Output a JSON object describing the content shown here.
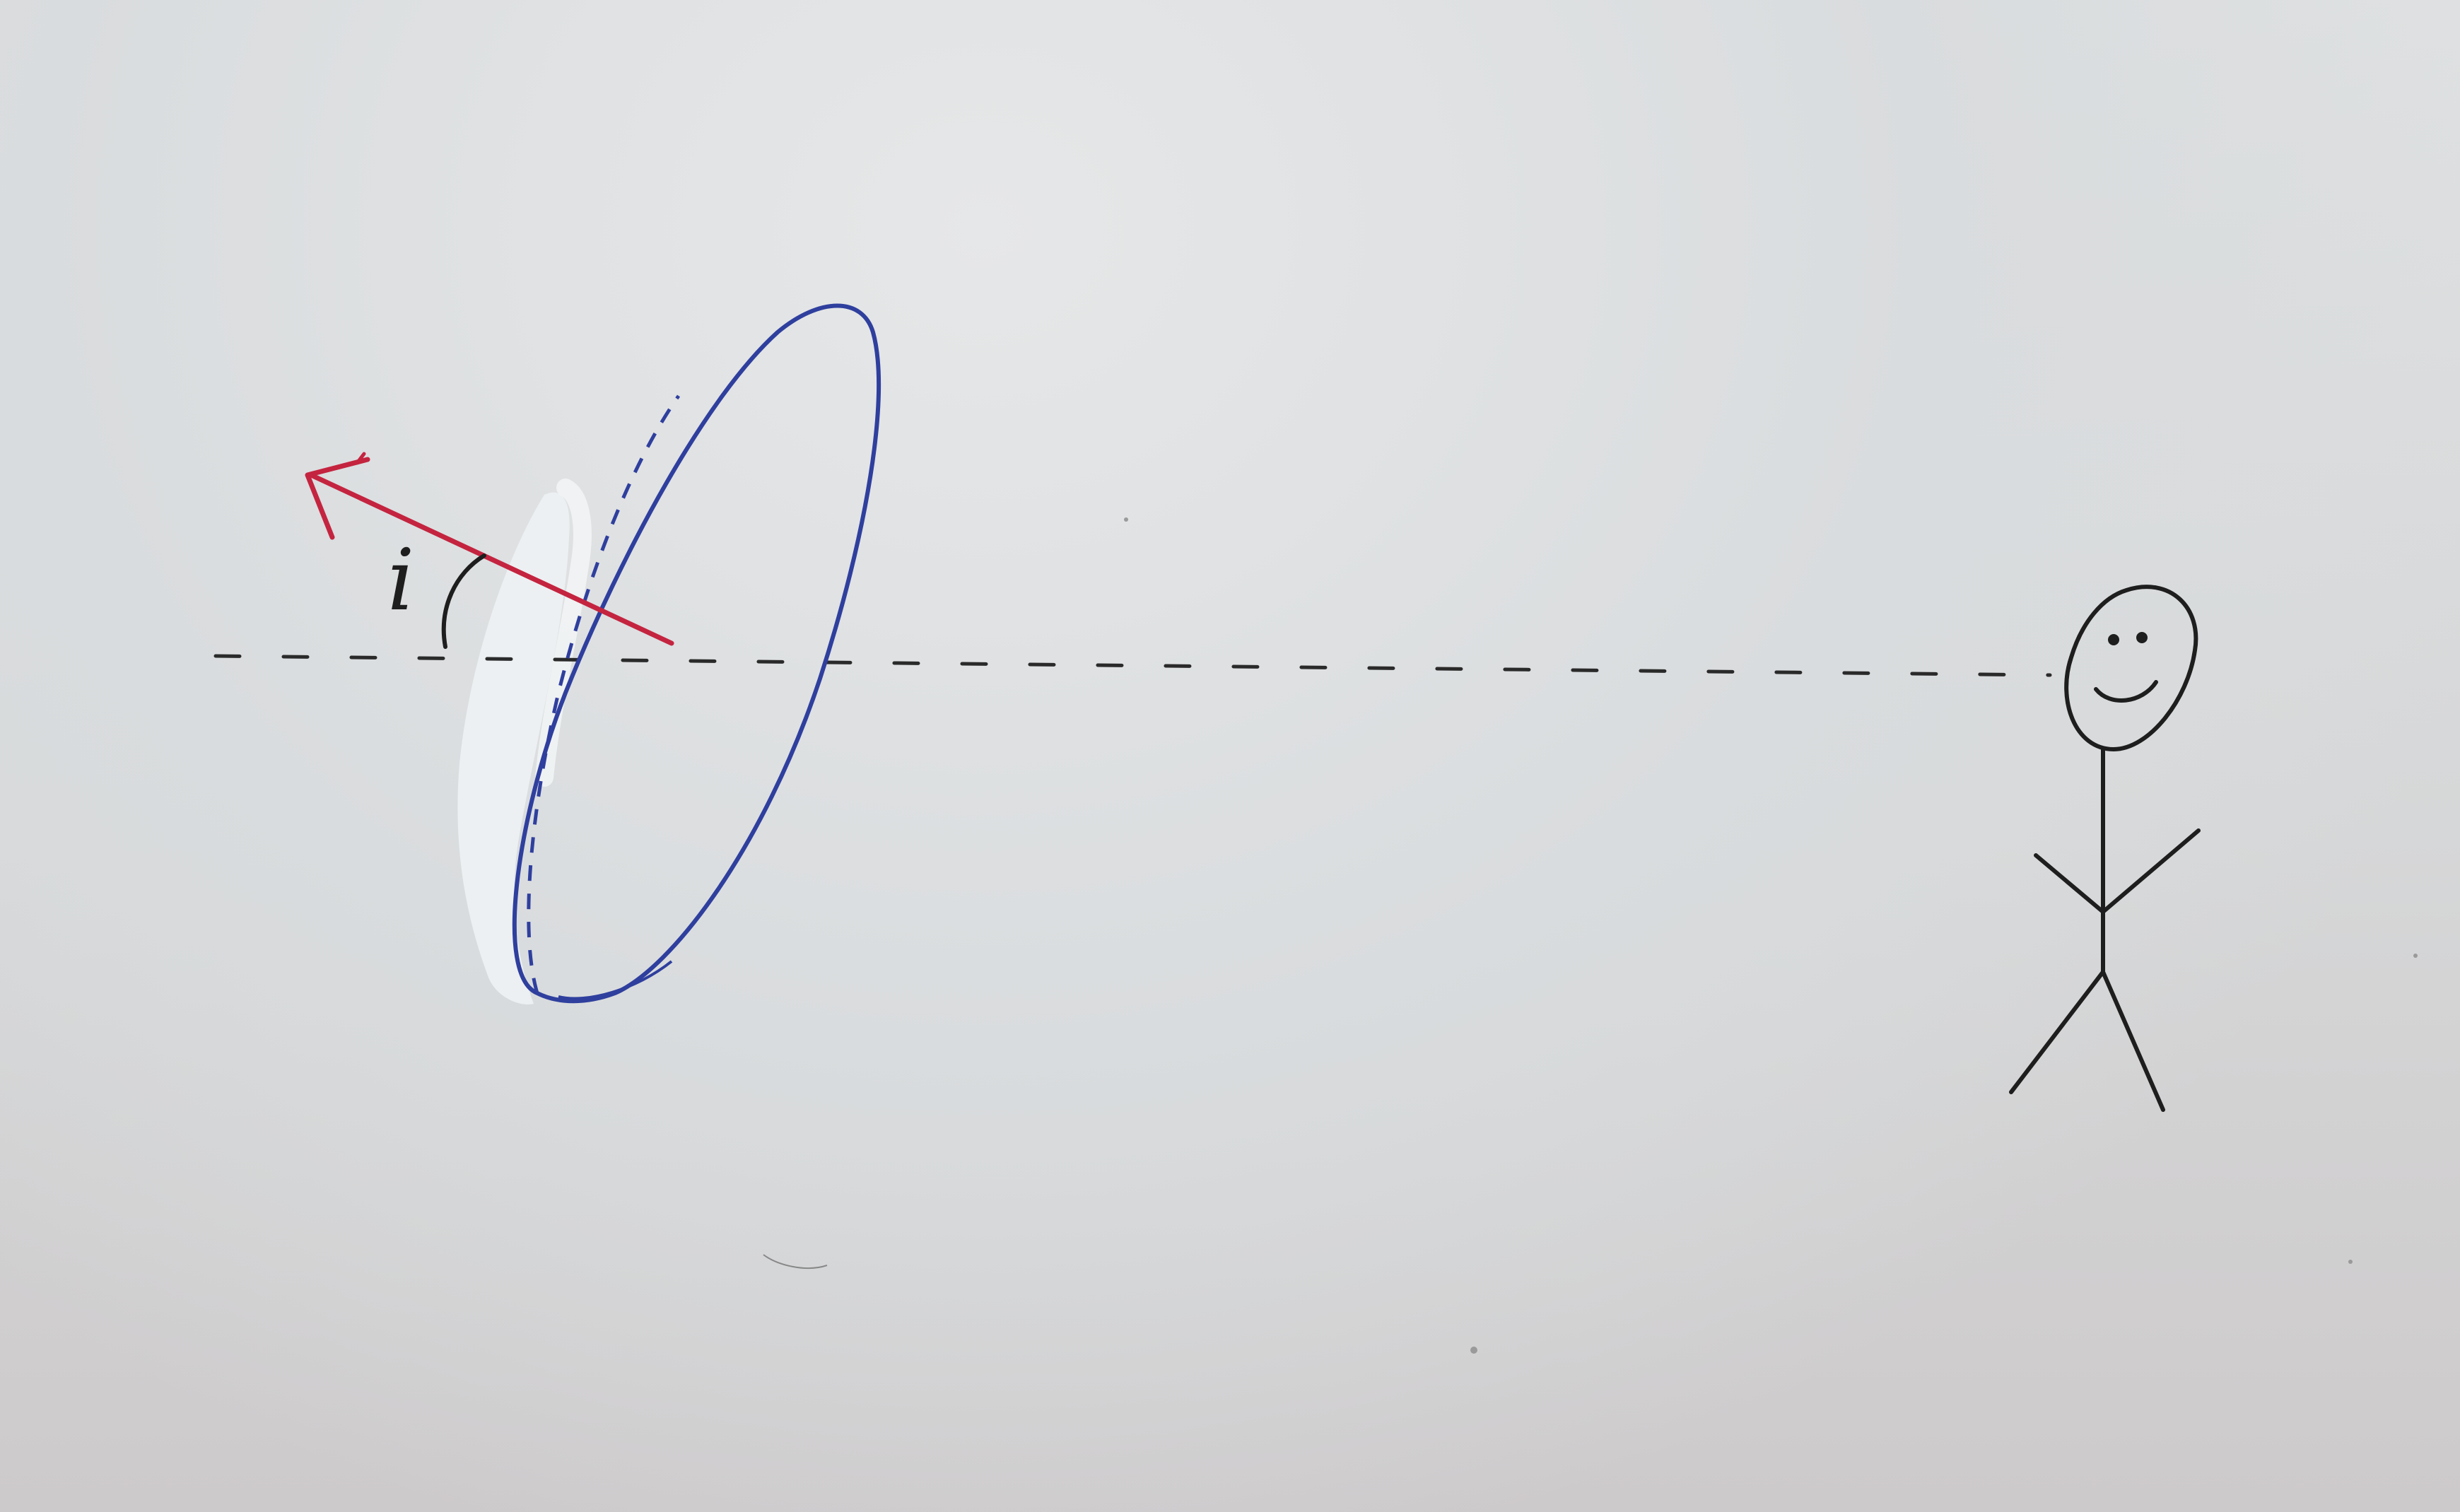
{
  "diagram": {
    "angle_label": "i",
    "colors": {
      "paper": "#d9dbdd",
      "ink_black": "#1e1e1e",
      "ink_blue": "#2f3f9e",
      "ink_red": "#c4243f",
      "correction_fluid": "#eef2f4"
    },
    "elements": [
      "line-of-sight",
      "tilted-ring",
      "normal-vector-arrow",
      "inclination-angle-arc",
      "observer-stick-figure"
    ]
  }
}
